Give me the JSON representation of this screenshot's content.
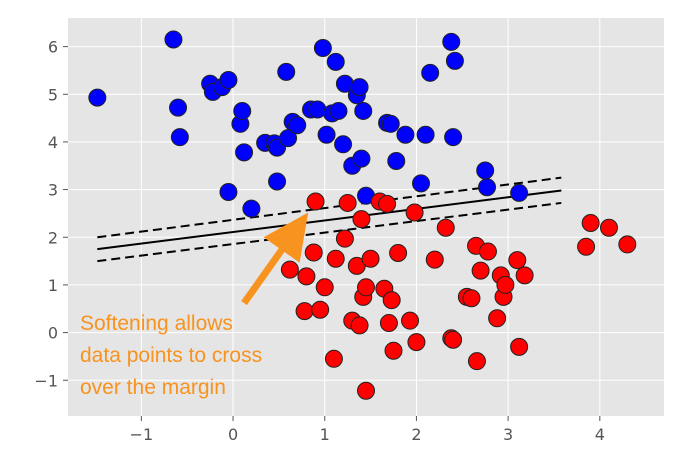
{
  "chart_data": {
    "type": "scatter",
    "title": "",
    "xlabel": "",
    "ylabel": "",
    "xlim": [
      -1.8,
      4.7
    ],
    "ylim": [
      -1.75,
      6.6
    ],
    "grid": true,
    "x_ticks": [
      -1,
      0,
      1,
      2,
      3,
      4
    ],
    "y_ticks": [
      -1,
      0,
      1,
      2,
      3,
      4,
      5,
      6
    ],
    "x_tick_labels": [
      "−1",
      "0",
      "1",
      "2",
      "3",
      "4"
    ],
    "y_tick_labels": [
      "−1",
      "0",
      "1",
      "2",
      "3",
      "4",
      "5",
      "6"
    ],
    "series": [
      {
        "color": "#0000FF",
        "points": [
          [
            -1.48,
            4.93
          ],
          [
            -0.65,
            6.15
          ],
          [
            -0.6,
            4.72
          ],
          [
            -0.58,
            4.1
          ],
          [
            -0.25,
            5.22
          ],
          [
            -0.22,
            5.05
          ],
          [
            -0.12,
            5.15
          ],
          [
            -0.05,
            5.3
          ],
          [
            -0.05,
            2.95
          ],
          [
            0.08,
            4.38
          ],
          [
            0.1,
            4.65
          ],
          [
            0.12,
            3.78
          ],
          [
            0.2,
            2.6
          ],
          [
            0.35,
            3.98
          ],
          [
            0.45,
            3.97
          ],
          [
            0.48,
            3.88
          ],
          [
            0.48,
            3.17
          ],
          [
            0.58,
            5.47
          ],
          [
            0.6,
            4.08
          ],
          [
            0.65,
            4.42
          ],
          [
            0.7,
            4.35
          ],
          [
            0.85,
            4.68
          ],
          [
            0.92,
            4.68
          ],
          [
            0.98,
            5.97
          ],
          [
            1.02,
            4.15
          ],
          [
            1.08,
            4.6
          ],
          [
            1.12,
            5.68
          ],
          [
            1.15,
            4.65
          ],
          [
            1.2,
            3.95
          ],
          [
            1.22,
            5.22
          ],
          [
            1.3,
            3.5
          ],
          [
            1.35,
            4.98
          ],
          [
            1.38,
            5.15
          ],
          [
            1.4,
            3.65
          ],
          [
            1.42,
            4.65
          ],
          [
            1.45,
            2.87
          ],
          [
            1.68,
            4.4
          ],
          [
            1.72,
            4.38
          ],
          [
            1.78,
            3.6
          ],
          [
            1.88,
            4.15
          ],
          [
            2.05,
            3.13
          ],
          [
            2.1,
            4.15
          ],
          [
            2.15,
            5.45
          ],
          [
            2.38,
            6.1
          ],
          [
            2.4,
            4.1
          ],
          [
            2.42,
            5.7
          ],
          [
            2.75,
            3.4
          ],
          [
            2.77,
            3.05
          ],
          [
            3.12,
            2.93
          ]
        ]
      },
      {
        "color": "#FF0000",
        "points": [
          [
            0.62,
            1.32
          ],
          [
            0.78,
            0.45
          ],
          [
            0.8,
            1.18
          ],
          [
            0.88,
            1.68
          ],
          [
            0.9,
            2.75
          ],
          [
            0.95,
            0.48
          ],
          [
            1.0,
            0.95
          ],
          [
            1.1,
            -0.55
          ],
          [
            1.12,
            1.55
          ],
          [
            1.22,
            1.97
          ],
          [
            1.25,
            2.72
          ],
          [
            1.3,
            0.25
          ],
          [
            1.35,
            1.4
          ],
          [
            1.38,
            0.15
          ],
          [
            1.4,
            2.38
          ],
          [
            1.42,
            0.75
          ],
          [
            1.45,
            0.95
          ],
          [
            1.45,
            -1.22
          ],
          [
            1.5,
            1.55
          ],
          [
            1.6,
            2.75
          ],
          [
            1.65,
            0.92
          ],
          [
            1.68,
            2.7
          ],
          [
            1.7,
            0.2
          ],
          [
            1.73,
            0.68
          ],
          [
            1.75,
            -0.38
          ],
          [
            1.8,
            1.67
          ],
          [
            1.93,
            0.25
          ],
          [
            1.98,
            2.52
          ],
          [
            2.0,
            -0.2
          ],
          [
            2.2,
            1.53
          ],
          [
            2.32,
            2.2
          ],
          [
            2.38,
            -0.12
          ],
          [
            2.4,
            -0.15
          ],
          [
            2.55,
            0.75
          ],
          [
            2.6,
            0.72
          ],
          [
            2.65,
            1.82
          ],
          [
            2.66,
            -0.6
          ],
          [
            2.7,
            1.3
          ],
          [
            2.78,
            1.7
          ],
          [
            2.88,
            0.3
          ],
          [
            2.92,
            1.2
          ],
          [
            2.95,
            0.75
          ],
          [
            2.97,
            1.0
          ],
          [
            3.1,
            1.52
          ],
          [
            3.12,
            -0.3
          ],
          [
            3.18,
            1.2
          ],
          [
            3.85,
            1.8
          ],
          [
            3.9,
            2.3
          ],
          [
            4.1,
            2.2
          ],
          [
            4.3,
            1.85
          ]
        ]
      }
    ],
    "lines": [
      {
        "style": "solid",
        "x": [
          -1.48,
          3.58
        ],
        "y": [
          1.75,
          2.98
        ]
      },
      {
        "style": "dashed",
        "x": [
          -1.48,
          3.58
        ],
        "y": [
          2.0,
          3.25
        ]
      },
      {
        "style": "dashed",
        "x": [
          -1.48,
          3.58
        ],
        "y": [
          1.5,
          2.72
        ]
      }
    ],
    "annotation": {
      "lines": [
        "Softening allows",
        "data points to cross",
        "over the margin"
      ],
      "color": "#F7931E",
      "arrow_from": [
        0.12,
        0.62
      ],
      "arrow_to": [
        0.82,
        2.52
      ]
    }
  }
}
